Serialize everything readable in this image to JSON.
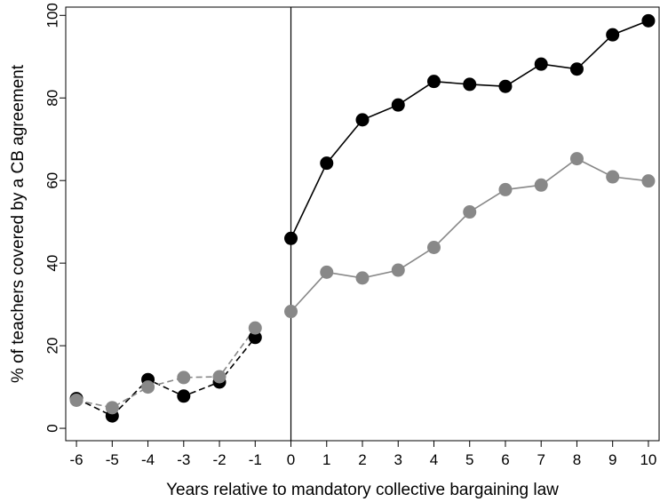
{
  "chart_data": {
    "type": "line",
    "title": "",
    "xlabel": "Years relative to mandatory collective bargaining law",
    "ylabel": "% of teachers covered by a CB agreement",
    "xlim": [
      -6.3,
      10.3
    ],
    "ylim": [
      -3,
      102
    ],
    "x_ticks": [
      -6,
      -5,
      -4,
      -3,
      -2,
      -1,
      0,
      1,
      2,
      3,
      4,
      5,
      6,
      7,
      8,
      9,
      10
    ],
    "y_ticks": [
      0,
      20,
      40,
      60,
      80,
      100
    ],
    "grid": false,
    "legend": "none",
    "reference_line_x": 0,
    "series": [
      {
        "color": "#000000",
        "pre_x": [
          -6,
          -5,
          -4,
          -3,
          -2,
          -1
        ],
        "pre_values": [
          7.2,
          3.0,
          11.8,
          7.8,
          11.2,
          22.0
        ],
        "post_x": [
          0,
          1,
          2,
          3,
          4,
          5,
          6,
          7,
          8,
          9,
          10
        ],
        "post_values": [
          46.0,
          64.2,
          74.7,
          78.3,
          84.0,
          83.3,
          82.8,
          88.2,
          87.0,
          95.3,
          98.7
        ]
      },
      {
        "color": "#888888",
        "pre_x": [
          -6,
          -5,
          -4,
          -3,
          -2,
          -1
        ],
        "pre_values": [
          6.8,
          5.0,
          10.0,
          12.3,
          12.5,
          24.3
        ],
        "post_x": [
          0,
          1,
          2,
          3,
          4,
          5,
          6,
          7,
          8,
          9,
          10
        ],
        "post_values": [
          28.3,
          37.8,
          36.4,
          38.3,
          43.8,
          52.4,
          57.8,
          58.9,
          65.3,
          60.9,
          59.9
        ]
      }
    ]
  }
}
